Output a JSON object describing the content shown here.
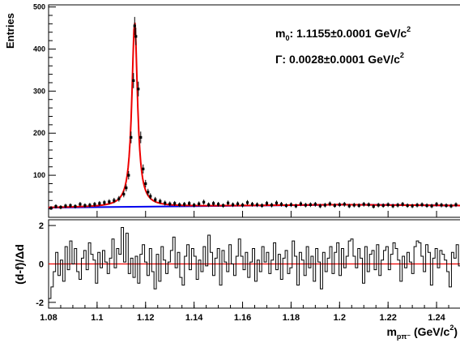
{
  "chart_data": [
    {
      "type": "scatter",
      "ylabel": "Entries",
      "xlim": [
        1.08,
        1.25
      ],
      "ylim": [
        0,
        505
      ],
      "yticks": [
        100,
        200,
        300,
        400,
        500
      ],
      "annotations": {
        "m0_symbol": "m",
        "m0_sub": "0",
        "m0_value": ": 1.1155±0.0001 GeV/c",
        "m0_sup": "2",
        "gamma_symbol": "Γ",
        "gamma_value": ": 0.0028±0.0001 GeV/c",
        "gamma_sup": "2"
      },
      "fit": {
        "signal_mean": 1.1155,
        "signal_width": 0.0028,
        "signal_peak": 440,
        "background": {
          "x": [
            1.08,
            1.2,
            1.25
          ],
          "y": [
            23,
            30,
            28
          ]
        }
      },
      "series": [
        {
          "values": [
            [
              1.081,
              22
            ],
            [
              1.083,
              26
            ],
            [
              1.085,
              24
            ],
            [
              1.087,
              27
            ],
            [
              1.089,
              28
            ],
            [
              1.091,
              26
            ],
            [
              1.093,
              31
            ],
            [
              1.095,
              28
            ],
            [
              1.097,
              29
            ],
            [
              1.099,
              31
            ],
            [
              1.101,
              33
            ],
            [
              1.103,
              35
            ],
            [
              1.105,
              37
            ],
            [
              1.107,
              40
            ],
            [
              1.109,
              44
            ],
            [
              1.111,
              55
            ],
            [
              1.112,
              70
            ],
            [
              1.113,
              100
            ],
            [
              1.114,
              190
            ],
            [
              1.115,
              325
            ],
            [
              1.1155,
              455
            ],
            [
              1.116,
              430
            ],
            [
              1.117,
              305
            ],
            [
              1.118,
              190
            ],
            [
              1.119,
              115
            ],
            [
              1.12,
              80
            ],
            [
              1.121,
              60
            ],
            [
              1.122,
              50
            ],
            [
              1.124,
              42
            ],
            [
              1.126,
              38
            ],
            [
              1.128,
              34
            ],
            [
              1.13,
              32
            ],
            [
              1.132,
              33
            ],
            [
              1.134,
              30
            ],
            [
              1.136,
              31
            ],
            [
              1.138,
              33
            ],
            [
              1.14,
              29
            ],
            [
              1.142,
              32
            ],
            [
              1.144,
              36
            ],
            [
              1.146,
              30
            ],
            [
              1.148,
              33
            ],
            [
              1.15,
              31
            ],
            [
              1.152,
              28
            ],
            [
              1.154,
              34
            ],
            [
              1.156,
              30
            ],
            [
              1.158,
              32
            ],
            [
              1.16,
              29
            ],
            [
              1.162,
              35
            ],
            [
              1.164,
              31
            ],
            [
              1.166,
              30
            ],
            [
              1.168,
              28
            ],
            [
              1.17,
              33
            ],
            [
              1.172,
              29
            ],
            [
              1.174,
              34
            ],
            [
              1.176,
              31
            ],
            [
              1.178,
              28
            ],
            [
              1.18,
              30
            ],
            [
              1.182,
              27
            ],
            [
              1.184,
              32
            ],
            [
              1.186,
              29
            ],
            [
              1.188,
              30
            ],
            [
              1.19,
              31
            ],
            [
              1.192,
              27
            ],
            [
              1.194,
              29
            ],
            [
              1.196,
              32
            ],
            [
              1.198,
              28
            ],
            [
              1.2,
              30
            ],
            [
              1.202,
              31
            ],
            [
              1.204,
              27
            ],
            [
              1.206,
              29
            ],
            [
              1.208,
              28
            ],
            [
              1.21,
              31
            ],
            [
              1.212,
              30
            ],
            [
              1.214,
              26
            ],
            [
              1.216,
              29
            ],
            [
              1.218,
              28
            ],
            [
              1.22,
              30
            ],
            [
              1.222,
              27
            ],
            [
              1.224,
              29
            ],
            [
              1.226,
              31
            ],
            [
              1.228,
              28
            ],
            [
              1.23,
              27
            ],
            [
              1.232,
              29
            ],
            [
              1.234,
              30
            ],
            [
              1.236,
              28
            ],
            [
              1.238,
              27
            ],
            [
              1.24,
              31
            ],
            [
              1.242,
              29
            ],
            [
              1.244,
              28
            ],
            [
              1.246,
              27
            ],
            [
              1.248,
              30
            ]
          ]
        }
      ]
    },
    {
      "type": "line",
      "ylabel": "(d-f)/Δd",
      "xlabel_main": "m",
      "xlabel_sub": "pπ⁻",
      "xlabel_units": " (GeV/c",
      "xlabel_sup": "2",
      "xlabel_close": ")",
      "xlim": [
        1.08,
        1.25
      ],
      "ylim": [
        -2.3,
        2.3
      ],
      "yticks": [
        -2,
        0,
        2
      ],
      "xticks": [
        "1.08",
        "1.1",
        "1.12",
        "1.14",
        "1.16",
        "1.18",
        "1.2",
        "1.22",
        "1.24"
      ],
      "xtick_values": [
        1.08,
        1.1,
        1.12,
        1.14,
        1.16,
        1.18,
        1.2,
        1.22,
        1.24
      ],
      "reference_line": 0,
      "colors": {
        "fit": "#ee0000",
        "background": "#0000ee",
        "data": "#000000",
        "zero_line": "#ee0000"
      },
      "series": [
        {
          "values": [
            -1.8,
            -1.2,
            -0.4,
            0.6,
            -0.6,
            0.2,
            -0.9,
            0.9,
            -0.3,
            1.2,
            0.0,
            0.8,
            -0.4,
            -0.8,
            0.3,
            0.7,
            -0.3,
            1.1,
            0.5,
            0.2,
            -1.0,
            0.6,
            -0.2,
            0.7,
            0.1,
            -0.5,
            0.3,
            1.3,
            -0.2,
            0.8,
            0.5,
            1.9,
            0.1,
            1.6,
            -0.5,
            0.3,
            -0.7,
            0.4,
            -1.0,
            0.5,
            1.0,
            0.1,
            -0.6,
            0.8,
            -0.4,
            -1.3,
            0.5,
            -0.9,
            0.9,
            0.2,
            -0.5,
            0.1,
            0.7,
            1.4,
            -0.2,
            0.6,
            -0.7,
            -1.1,
            0.4,
            1.0,
            -0.3,
            0.8,
            0.4,
            -0.8,
            0.2,
            -0.4,
            0.9,
            -0.1,
            1.5,
            0.6,
            -0.6,
            0.3,
            0.8,
            -1.1,
            0.7,
            0.1,
            -0.4,
            1.0,
            0.0,
            -0.6,
            0.4,
            1.3,
            0.4,
            -0.3,
            0.6,
            -0.7,
            0.1,
            0.8,
            -0.9,
            0.2,
            -0.4,
            0.9,
            0.1,
            0.6,
            -0.5,
            0.2,
            1.1,
            -0.3,
            0.5,
            -0.8,
            0.3,
            0.7,
            -0.5,
            -0.2,
            1.2,
            0.4,
            -1.1,
            0.6,
            0.2,
            -0.6,
            0.9,
            -0.2,
            0.4,
            -0.9,
            0.8,
            0.1,
            -1.3,
            0.6,
            -0.4,
            0.3,
            0.9,
            -0.5,
            0.6,
            1.1,
            -0.6,
            0.8,
            -0.2,
            0.4,
            1.2,
            1.3,
            0.4,
            -0.2,
            0.8,
            0.3,
            -1.0,
            0.9,
            -0.4,
            0.5,
            0.7,
            -0.3,
            1.0,
            -0.6,
            0.2,
            0.7,
            0.9,
            -0.3,
            0.5,
            1.1,
            0.8,
            0.2,
            -0.9,
            0.4,
            -0.2,
            0.6,
            0.1,
            -0.5,
            0.9,
            1.2,
            1.1,
            0.4,
            -0.4,
            1.0,
            0.6,
            -1.1,
            0.3,
            0.8,
            -0.2,
            0.7,
            0.5,
            0.2,
            -0.4,
            -1.2,
            0.6,
            0.3,
            1.0,
            -0.1
          ]
        }
      ]
    }
  ]
}
